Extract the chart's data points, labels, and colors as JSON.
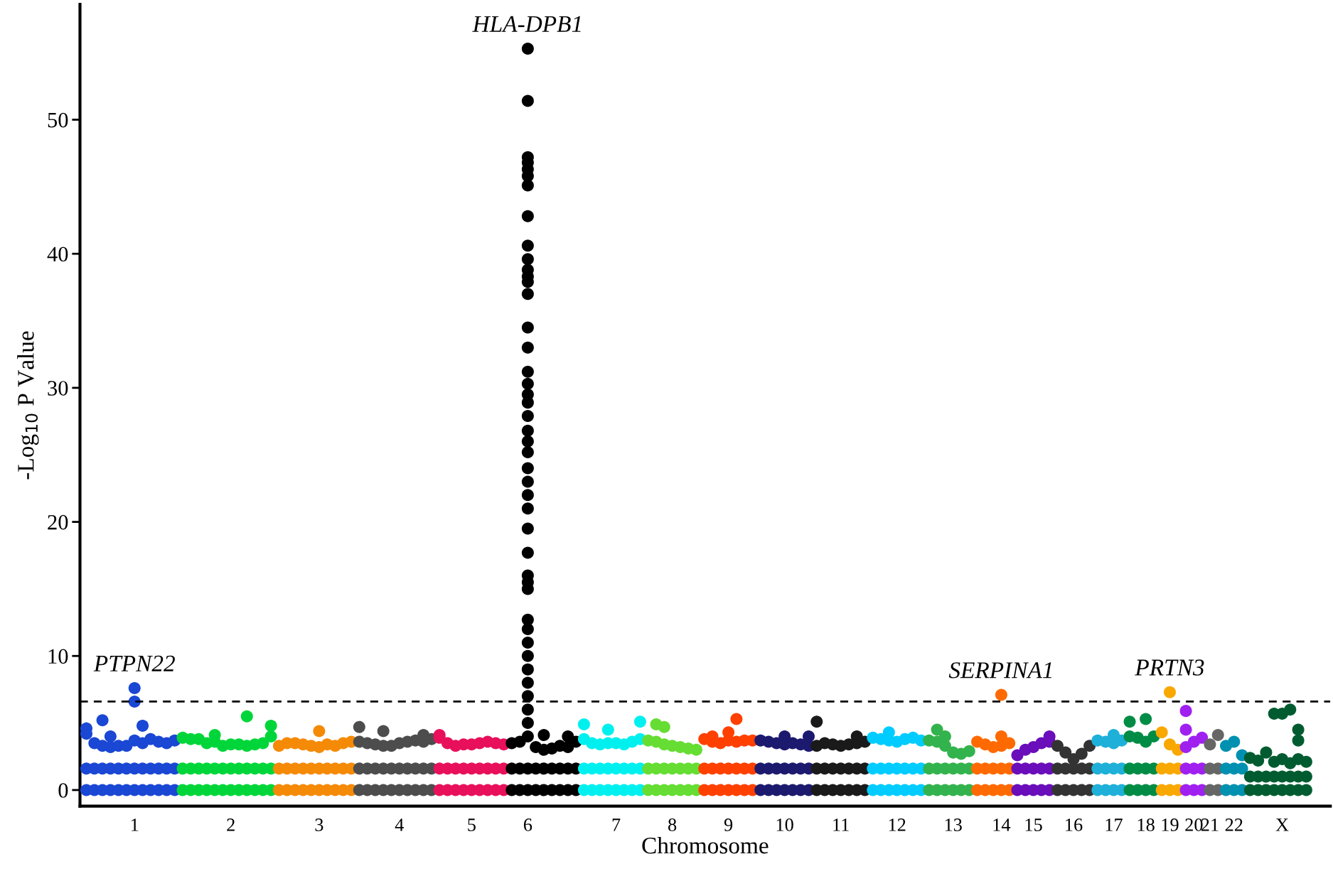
{
  "chart_data": {
    "type": "scatter",
    "xlabel": "Chromosome",
    "ylabel": "-Log$_{10}$ P Value",
    "ylim": [
      -1.2,
      58.6
    ],
    "yticks": [
      0,
      10,
      20,
      30,
      40,
      50
    ],
    "grid": false,
    "marker": "circle",
    "categories": [
      null,
      null,
      null,
      null,
      null,
      null,
      "1",
      null,
      null,
      null,
      null,
      null,
      null,
      null,
      null,
      null,
      null,
      null,
      "2",
      null,
      null,
      null,
      null,
      null,
      null,
      null,
      null,
      null,
      null,
      "3",
      null,
      null,
      null,
      null,
      null,
      null,
      null,
      null,
      null,
      "4",
      null,
      null,
      null,
      null,
      null,
      null,
      null,
      null,
      "5",
      null,
      null,
      null,
      null,
      null,
      null,
      "6",
      null,
      null,
      null,
      null,
      null,
      null,
      null,
      null,
      null,
      null,
      "7",
      null,
      null,
      null,
      null,
      null,
      null,
      "8",
      null,
      null,
      null,
      null,
      null,
      null,
      "9",
      null,
      null,
      null,
      null,
      null,
      null,
      "10",
      null,
      null,
      null,
      null,
      null,
      null,
      "11",
      null,
      null,
      null,
      null,
      null,
      null,
      "12",
      null,
      null,
      null,
      null,
      null,
      null,
      "13",
      null,
      null,
      null,
      null,
      null,
      "14",
      null,
      null,
      null,
      "15",
      null,
      null,
      null,
      null,
      "16",
      null,
      null,
      null,
      null,
      "17",
      null,
      null,
      null,
      "18",
      null,
      null,
      "19",
      null,
      null,
      "20",
      null,
      "21",
      null,
      null,
      "22",
      null,
      null,
      null,
      null,
      null,
      "X",
      null,
      null,
      null
    ],
    "ref_lines": [
      {
        "axis": "y",
        "value": 6.6,
        "color": "#000000",
        "line_style": "dashed"
      }
    ],
    "annotations": [
      {
        "text": "HLA-DPB1",
        "x": "6",
        "y": 55.3
      },
      {
        "text": "PTPN22",
        "x": "1",
        "y": 7.6
      },
      {
        "text": "SERPINA1",
        "x": "14",
        "y": 7.1
      },
      {
        "text": "PRTN3",
        "x": "19",
        "y": 7.3
      }
    ],
    "series": [
      {
        "colors": [
          "#1a47d4",
          "#1a47d4",
          "#1a47d4",
          "#1a47d4",
          "#1a47d4",
          "#1a47d4",
          "#1a47d4",
          "#1a47d4",
          "#1a47d4",
          "#1a47d4",
          "#1a47d4",
          "#1a47d4",
          "#00d63a",
          "#00d63a",
          "#00d63a",
          "#00d63a",
          "#00d63a",
          "#00d63a",
          "#00d63a",
          "#00d63a",
          "#00d63a",
          "#00d63a",
          "#00d63a",
          "#00d63a",
          "#f58a07",
          "#f58a07",
          "#f58a07",
          "#f58a07",
          "#f58a07",
          "#f58a07",
          "#f58a07",
          "#f58a07",
          "#f58a07",
          "#f58a07",
          "#4d4d4d",
          "#4d4d4d",
          "#4d4d4d",
          "#4d4d4d",
          "#4d4d4d",
          "#4d4d4d",
          "#4d4d4d",
          "#4d4d4d",
          "#4d4d4d",
          "#4d4d4d",
          "#e8105a",
          "#e8105a",
          "#e8105a",
          "#e8105a",
          "#e8105a",
          "#e8105a",
          "#e8105a",
          "#e8105a",
          "#e8105a",
          "#000000",
          "#000000",
          "#000000",
          "#000000",
          "#000000",
          "#000000",
          "#000000",
          "#000000",
          "#000000",
          "#00f0f0",
          "#00f0f0",
          "#00f0f0",
          "#00f0f0",
          "#00f0f0",
          "#00f0f0",
          "#00f0f0",
          "#00f0f0",
          "#66dd33",
          "#66dd33",
          "#66dd33",
          "#66dd33",
          "#66dd33",
          "#66dd33",
          "#66dd33",
          "#ff4000",
          "#ff4000",
          "#ff4000",
          "#ff4000",
          "#ff4000",
          "#ff4000",
          "#ff4000",
          "#1c1a6e",
          "#1c1a6e",
          "#1c1a6e",
          "#1c1a6e",
          "#1c1a6e",
          "#1c1a6e",
          "#1c1a6e",
          "#1a1a1a",
          "#1a1a1a",
          "#1a1a1a",
          "#1a1a1a",
          "#1a1a1a",
          "#1a1a1a",
          "#1a1a1a",
          "#00ccff",
          "#00ccff",
          "#00ccff",
          "#00ccff",
          "#00ccff",
          "#00ccff",
          "#00ccff",
          "#33b34d",
          "#33b34d",
          "#33b34d",
          "#33b34d",
          "#33b34d",
          "#33b34d",
          "#ff6a00",
          "#ff6a00",
          "#ff6a00",
          "#ff6a00",
          "#ff6a00",
          "#6a0dba",
          "#6a0dba",
          "#6a0dba",
          "#6a0dba",
          "#6a0dba",
          "#333333",
          "#333333",
          "#333333",
          "#333333",
          "#333333",
          "#1eb0d8",
          "#1eb0d8",
          "#1eb0d8",
          "#1eb0d8",
          "#008c45",
          "#008c45",
          "#008c45",
          "#008c45",
          "#f9a800",
          "#f9a800",
          "#f9a800",
          "#a020f0",
          "#a020f0",
          "#a020f0",
          "#666666",
          "#666666",
          "#0090b0",
          "#0090b0",
          "#0090b0",
          "#005c30",
          "#005c30",
          "#005c30",
          "#005c30",
          "#005c30",
          "#005c30",
          "#005c30",
          "#005c30"
        ],
        "values": [
          0,
          0,
          0,
          0,
          0,
          0,
          0,
          0,
          0,
          0,
          0,
          0,
          0,
          0,
          0,
          0,
          0,
          0,
          0,
          0,
          0,
          0,
          0,
          0,
          0,
          0,
          0,
          0,
          0,
          0,
          0,
          0,
          0,
          0,
          0,
          0,
          0,
          0,
          0,
          0,
          0,
          0,
          0,
          0,
          0,
          0,
          0,
          0,
          0,
          0,
          0,
          0,
          0,
          0,
          0,
          0,
          0,
          0,
          0,
          0,
          0,
          0,
          0,
          0,
          0,
          0,
          0,
          0,
          0,
          0,
          0,
          0,
          0,
          0,
          0,
          0,
          0,
          0,
          0,
          0,
          0,
          0,
          0,
          0,
          0,
          0,
          0,
          0,
          0,
          0,
          0,
          0,
          0,
          0,
          0,
          0,
          0,
          0,
          0,
          0,
          0,
          0,
          0,
          0,
          0,
          0,
          0,
          0,
          0,
          0,
          0,
          0,
          0,
          0,
          0,
          0,
          0,
          0,
          0,
          0,
          0,
          0,
          0,
          0,
          0,
          0,
          0,
          0,
          0,
          0,
          0,
          0,
          0,
          0,
          0,
          0,
          0,
          0,
          0,
          0,
          0,
          0,
          0,
          0,
          0,
          0,
          0,
          0,
          0,
          0,
          0,
          0,
          0
        ]
      },
      {
        "colors": [
          "#1a47d4",
          "#1a47d4",
          "#1a47d4",
          "#1a47d4",
          "#1a47d4",
          "#1a47d4",
          "#1a47d4",
          "#1a47d4",
          "#1a47d4",
          "#1a47d4",
          "#1a47d4",
          "#1a47d4",
          "#00d63a",
          "#00d63a",
          "#00d63a",
          "#00d63a",
          "#00d63a",
          "#00d63a",
          "#00d63a",
          "#00d63a",
          "#00d63a",
          "#00d63a",
          "#00d63a",
          "#00d63a",
          "#f58a07",
          "#f58a07",
          "#f58a07",
          "#f58a07",
          "#f58a07",
          "#f58a07",
          "#f58a07",
          "#f58a07",
          "#f58a07",
          "#f58a07",
          "#4d4d4d",
          "#4d4d4d",
          "#4d4d4d",
          "#4d4d4d",
          "#4d4d4d",
          "#4d4d4d",
          "#4d4d4d",
          "#4d4d4d",
          "#4d4d4d",
          "#4d4d4d",
          "#e8105a",
          "#e8105a",
          "#e8105a",
          "#e8105a",
          "#e8105a",
          "#e8105a",
          "#e8105a",
          "#e8105a",
          "#e8105a",
          "#000000",
          "#000000",
          "#000000",
          "#000000",
          "#000000",
          "#000000",
          "#000000",
          "#000000",
          "#000000",
          "#00f0f0",
          "#00f0f0",
          "#00f0f0",
          "#00f0f0",
          "#00f0f0",
          "#00f0f0",
          "#00f0f0",
          "#00f0f0",
          "#66dd33",
          "#66dd33",
          "#66dd33",
          "#66dd33",
          "#66dd33",
          "#66dd33",
          "#66dd33",
          "#ff4000",
          "#ff4000",
          "#ff4000",
          "#ff4000",
          "#ff4000",
          "#ff4000",
          "#ff4000",
          "#1c1a6e",
          "#1c1a6e",
          "#1c1a6e",
          "#1c1a6e",
          "#1c1a6e",
          "#1c1a6e",
          "#1c1a6e",
          "#1a1a1a",
          "#1a1a1a",
          "#1a1a1a",
          "#1a1a1a",
          "#1a1a1a",
          "#1a1a1a",
          "#1a1a1a",
          "#00ccff",
          "#00ccff",
          "#00ccff",
          "#00ccff",
          "#00ccff",
          "#00ccff",
          "#00ccff",
          "#33b34d",
          "#33b34d",
          "#33b34d",
          "#33b34d",
          "#33b34d",
          "#33b34d",
          "#ff6a00",
          "#ff6a00",
          "#ff6a00",
          "#ff6a00",
          "#ff6a00",
          "#6a0dba",
          "#6a0dba",
          "#6a0dba",
          "#6a0dba",
          "#6a0dba",
          "#333333",
          "#333333",
          "#333333",
          "#333333",
          "#333333",
          "#1eb0d8",
          "#1eb0d8",
          "#1eb0d8",
          "#1eb0d8",
          "#008c45",
          "#008c45",
          "#008c45",
          "#008c45",
          "#f9a800",
          "#f9a800",
          "#f9a800",
          "#a020f0",
          "#a020f0",
          "#a020f0",
          "#666666",
          "#666666",
          "#0090b0",
          "#0090b0",
          "#0090b0",
          "#005c30",
          "#005c30",
          "#005c30",
          "#005c30",
          "#005c30",
          "#005c30",
          "#005c30",
          "#005c30"
        ],
        "values": [
          1.6,
          1.6,
          1.6,
          1.6,
          1.6,
          1.6,
          1.6,
          1.6,
          1.6,
          1.6,
          1.6,
          1.6,
          1.6,
          1.6,
          1.6,
          1.6,
          1.6,
          1.6,
          1.6,
          1.6,
          1.6,
          1.6,
          1.6,
          1.6,
          1.6,
          1.6,
          1.6,
          1.6,
          1.6,
          1.6,
          1.6,
          1.6,
          1.6,
          1.6,
          1.6,
          1.6,
          1.6,
          1.6,
          1.6,
          1.6,
          1.6,
          1.6,
          1.6,
          1.6,
          1.6,
          1.6,
          1.6,
          1.6,
          1.6,
          1.6,
          1.6,
          1.6,
          1.6,
          1.6,
          1.6,
          1.6,
          1.6,
          1.6,
          1.6,
          1.6,
          1.6,
          1.6,
          1.6,
          1.6,
          1.6,
          1.6,
          1.6,
          1.6,
          1.6,
          1.6,
          1.6,
          1.6,
          1.6,
          1.6,
          1.6,
          1.6,
          1.6,
          1.6,
          1.6,
          1.6,
          1.6,
          1.6,
          1.6,
          1.6,
          1.6,
          1.6,
          1.6,
          1.6,
          1.6,
          1.6,
          1.6,
          1.6,
          1.6,
          1.6,
          1.6,
          1.6,
          1.6,
          1.6,
          1.6,
          1.6,
          1.6,
          1.6,
          1.6,
          1.6,
          1.6,
          1.6,
          1.6,
          1.6,
          1.6,
          1.6,
          1.6,
          1.6,
          1.6,
          1.6,
          1.6,
          1.6,
          1.6,
          1.6,
          1.6,
          1.6,
          1.6,
          1.6,
          1.6,
          1.6,
          1.6,
          1.6,
          1.6,
          1.6,
          1.6,
          1.6,
          1.6,
          1.6,
          1.6,
          1.6,
          1.6,
          1.6,
          1.6,
          1.6,
          1.6,
          1.6,
          1.6,
          1.6,
          1.6,
          1.6,
          1.6,
          1.0,
          1.0,
          1.0,
          1.0,
          1.0,
          1.0,
          1.0,
          1.0
        ]
      },
      {
        "colors": [
          "#1a47d4",
          "#1a47d4",
          "#1a47d4",
          "#1a47d4",
          "#1a47d4",
          "#1a47d4",
          "#1a47d4",
          "#1a47d4",
          "#1a47d4",
          "#1a47d4",
          "#1a47d4",
          "#1a47d4",
          "#00d63a",
          "#00d63a",
          "#00d63a",
          "#00d63a",
          "#00d63a",
          "#00d63a",
          "#00d63a",
          "#00d63a",
          "#00d63a",
          "#00d63a",
          "#00d63a",
          "#00d63a",
          "#f58a07",
          "#f58a07",
          "#f58a07",
          "#f58a07",
          "#f58a07",
          "#f58a07",
          "#f58a07",
          "#f58a07",
          "#f58a07",
          "#f58a07",
          "#4d4d4d",
          "#4d4d4d",
          "#4d4d4d",
          "#4d4d4d",
          "#4d4d4d",
          "#4d4d4d",
          "#4d4d4d",
          "#4d4d4d",
          "#4d4d4d",
          "#4d4d4d",
          "#e8105a",
          "#e8105a",
          "#e8105a",
          "#e8105a",
          "#e8105a",
          "#e8105a",
          "#e8105a",
          "#e8105a",
          "#e8105a",
          "#000000",
          "#000000",
          "#000000",
          "#000000",
          "#000000",
          "#000000",
          "#000000",
          "#000000",
          "#000000",
          "#00f0f0",
          "#00f0f0",
          "#00f0f0",
          "#00f0f0",
          "#00f0f0",
          "#00f0f0",
          "#00f0f0",
          "#00f0f0",
          "#66dd33",
          "#66dd33",
          "#66dd33",
          "#66dd33",
          "#66dd33",
          "#66dd33",
          "#66dd33",
          "#ff4000",
          "#ff4000",
          "#ff4000",
          "#ff4000",
          "#ff4000",
          "#ff4000",
          "#ff4000",
          "#1c1a6e",
          "#1c1a6e",
          "#1c1a6e",
          "#1c1a6e",
          "#1c1a6e",
          "#1c1a6e",
          "#1c1a6e",
          "#1a1a1a",
          "#1a1a1a",
          "#1a1a1a",
          "#1a1a1a",
          "#1a1a1a",
          "#1a1a1a",
          "#1a1a1a",
          "#00ccff",
          "#00ccff",
          "#00ccff",
          "#00ccff",
          "#00ccff",
          "#00ccff",
          "#00ccff",
          "#33b34d",
          "#33b34d",
          "#33b34d",
          "#33b34d",
          "#33b34d",
          "#33b34d",
          "#ff6a00",
          "#ff6a00",
          "#ff6a00",
          "#ff6a00",
          "#ff6a00",
          "#6a0dba",
          "#6a0dba",
          "#6a0dba",
          "#6a0dba",
          "#6a0dba",
          "#333333",
          "#333333",
          "#333333",
          "#333333",
          "#333333",
          "#1eb0d8",
          "#1eb0d8",
          "#1eb0d8",
          "#1eb0d8",
          "#008c45",
          "#008c45",
          "#008c45",
          "#008c45",
          "#f9a800",
          "#f9a800",
          "#f9a800",
          "#a020f0",
          "#a020f0",
          "#a020f0",
          "#666666",
          "#666666",
          "#0090b0",
          "#0090b0",
          "#0090b0",
          "#005c30",
          "#005c30",
          "#005c30",
          "#005c30",
          "#005c30",
          "#005c30",
          "#005c30",
          "#005c30"
        ],
        "values": [
          4.2,
          3.5,
          3.3,
          3.2,
          3.3,
          3.3,
          3.7,
          3.5,
          3.8,
          3.6,
          3.5,
          3.7,
          3.9,
          3.8,
          3.8,
          3.5,
          3.6,
          3.3,
          3.4,
          3.4,
          3.3,
          3.4,
          3.5,
          4.0,
          3.3,
          3.5,
          3.5,
          3.4,
          3.3,
          3.2,
          3.4,
          3.3,
          3.5,
          3.6,
          3.6,
          3.5,
          3.4,
          3.3,
          3.3,
          3.5,
          3.6,
          3.7,
          3.6,
          3.8,
          3.9,
          3.5,
          3.3,
          3.4,
          3.4,
          3.5,
          3.6,
          3.5,
          3.4,
          3.5,
          3.6,
          4.0,
          3.2,
          3.0,
          3.1,
          3.3,
          3.2,
          3.6,
          3.8,
          3.5,
          3.4,
          3.5,
          3.5,
          3.4,
          3.6,
          3.8,
          3.7,
          3.6,
          3.4,
          3.3,
          3.2,
          3.1,
          3.0,
          3.8,
          3.6,
          3.5,
          3.7,
          3.6,
          3.7,
          3.7,
          3.7,
          3.6,
          3.5,
          3.4,
          3.5,
          3.4,
          3.3,
          3.3,
          3.5,
          3.4,
          3.3,
          3.4,
          3.5,
          3.6,
          3.9,
          3.8,
          3.7,
          3.6,
          3.8,
          3.9,
          3.7,
          3.7,
          3.6,
          3.3,
          2.8,
          2.7,
          2.9,
          3.6,
          3.4,
          3.2,
          3.3,
          3.5,
          2.6,
          3.0,
          3.2,
          3.5,
          3.6,
          3.3,
          2.8,
          2.3,
          2.7,
          3.3,
          3.7,
          3.6,
          3.5,
          3.7,
          4.0,
          3.9,
          3.6,
          4.0,
          4.3,
          3.4,
          3.0,
          3.2,
          3.6,
          3.9,
          3.4,
          4.1,
          3.3,
          3.6,
          2.6,
          2.4,
          2.2,
          2.8,
          2.1,
          2.3,
          2.0,
          2.3,
          2.1
        ]
      },
      {
        "colors": [
          "#1a47d4",
          "#1a47d4",
          "#1a47d4",
          "#1a47d4",
          "#1a47d4",
          "#1a47d4",
          "#1a47d4",
          "#1a47d4",
          "#1a47d4",
          "#1a47d4",
          "#1a47d4",
          "#1a47d4",
          "#00d63a",
          "#00d63a",
          "#00d63a",
          "#00d63a",
          "#00d63a",
          "#00d63a",
          "#00d63a",
          "#00d63a",
          "#00d63a",
          "#00d63a",
          "#00d63a",
          "#00d63a",
          "#f58a07",
          "#f58a07",
          "#f58a07",
          "#f58a07",
          "#f58a07",
          "#f58a07",
          "#f58a07",
          "#f58a07",
          "#f58a07",
          "#f58a07",
          "#4d4d4d",
          "#4d4d4d",
          "#4d4d4d",
          "#4d4d4d",
          "#4d4d4d",
          "#4d4d4d",
          "#4d4d4d",
          "#4d4d4d",
          "#4d4d4d",
          "#4d4d4d",
          "#e8105a",
          "#e8105a",
          "#e8105a",
          "#e8105a",
          "#e8105a",
          "#e8105a",
          "#e8105a",
          "#e8105a",
          "#e8105a",
          "#000000",
          "#000000",
          "#000000",
          "#000000",
          "#000000",
          "#000000",
          "#000000",
          "#000000",
          "#000000",
          "#00f0f0",
          "#00f0f0",
          "#00f0f0",
          "#00f0f0",
          "#00f0f0",
          "#00f0f0",
          "#00f0f0",
          "#00f0f0",
          "#66dd33",
          "#66dd33",
          "#66dd33",
          "#66dd33",
          "#66dd33",
          "#66dd33",
          "#66dd33",
          "#ff4000",
          "#ff4000",
          "#ff4000",
          "#ff4000",
          "#ff4000",
          "#ff4000",
          "#ff4000",
          "#1c1a6e",
          "#1c1a6e",
          "#1c1a6e",
          "#1c1a6e",
          "#1c1a6e",
          "#1c1a6e",
          "#1c1a6e",
          "#1a1a1a",
          "#1a1a1a",
          "#1a1a1a",
          "#1a1a1a",
          "#1a1a1a",
          "#1a1a1a",
          "#1a1a1a",
          "#00ccff",
          "#00ccff",
          "#00ccff",
          "#00ccff",
          "#00ccff",
          "#00ccff",
          "#00ccff",
          "#33b34d",
          "#33b34d",
          "#33b34d",
          "#33b34d",
          "#33b34d",
          "#33b34d",
          "#ff6a00",
          "#ff6a00",
          "#ff6a00",
          "#ff6a00",
          "#ff6a00",
          "#6a0dba",
          "#6a0dba",
          "#6a0dba",
          "#6a0dba",
          "#6a0dba",
          "#333333",
          "#333333",
          "#333333",
          "#333333",
          "#333333",
          "#1eb0d8",
          "#1eb0d8",
          "#1eb0d8",
          "#1eb0d8",
          "#008c45",
          "#008c45",
          "#008c45",
          "#008c45",
          "#f9a800",
          "#f9a800",
          "#f9a800",
          "#a020f0",
          "#a020f0",
          "#a020f0",
          "#666666",
          "#666666",
          "#0090b0",
          "#0090b0",
          "#0090b0",
          "#005c30",
          "#005c30",
          "#005c30",
          "#005c30",
          "#005c30",
          "#005c30",
          "#005c30",
          "#005c30"
        ],
        "values": [
          4.6,
          null,
          5.2,
          4.0,
          null,
          null,
          7.6,
          4.8,
          null,
          null,
          null,
          null,
          null,
          null,
          null,
          null,
          4.1,
          null,
          null,
          null,
          5.5,
          null,
          null,
          4.8,
          null,
          null,
          null,
          null,
          null,
          4.4,
          null,
          null,
          null,
          null,
          4.7,
          null,
          null,
          4.4,
          null,
          null,
          null,
          null,
          4.1,
          null,
          4.1,
          null,
          null,
          null,
          null,
          null,
          null,
          null,
          null,
          null,
          null,
          null,
          null,
          4.1,
          null,
          null,
          4.0,
          null,
          4.9,
          null,
          null,
          4.5,
          null,
          null,
          null,
          5.1,
          null,
          4.9,
          4.7,
          null,
          null,
          null,
          null,
          null,
          4.0,
          null,
          4.3,
          5.3,
          null,
          null,
          null,
          null,
          null,
          4.0,
          null,
          null,
          4.0,
          5.1,
          null,
          null,
          null,
          null,
          4.0,
          null,
          null,
          null,
          4.3,
          null,
          null,
          null,
          null,
          null,
          4.5,
          4.0,
          null,
          null,
          null,
          null,
          null,
          null,
          7.1,
          null,
          null,
          null,
          null,
          null,
          4.0,
          null,
          null,
          null,
          null,
          null,
          null,
          null,
          4.1,
          null,
          5.1,
          null,
          5.3,
          null,
          null,
          7.3,
          null,
          5.9,
          null,
          null,
          null,
          null,
          null,
          null,
          null,
          null,
          null,
          null,
          5.7,
          5.7,
          6.0,
          4.5,
          null
        ]
      },
      {
        "colors": [
          "#1a47d4",
          "#1a47d4",
          "#1a47d4",
          "#1a47d4",
          "#1a47d4",
          "#1a47d4",
          "#1a47d4",
          "#1a47d4",
          "#1a47d4",
          "#1a47d4",
          "#1a47d4",
          "#1a47d4",
          "#00d63a",
          "#00d63a",
          "#00d63a",
          "#00d63a",
          "#00d63a",
          "#00d63a",
          "#00d63a",
          "#00d63a",
          "#00d63a",
          "#00d63a",
          "#00d63a",
          "#00d63a",
          "#f58a07",
          "#f58a07",
          "#f58a07",
          "#f58a07",
          "#f58a07",
          "#f58a07",
          "#f58a07",
          "#f58a07",
          "#f58a07",
          "#f58a07",
          "#4d4d4d",
          "#4d4d4d",
          "#4d4d4d",
          "#4d4d4d",
          "#4d4d4d",
          "#4d4d4d",
          "#4d4d4d",
          "#4d4d4d",
          "#4d4d4d",
          "#4d4d4d",
          "#e8105a",
          "#e8105a",
          "#e8105a",
          "#e8105a",
          "#e8105a",
          "#e8105a",
          "#e8105a",
          "#e8105a",
          "#e8105a",
          "#000000",
          "#000000",
          "#000000",
          "#000000",
          "#000000",
          "#000000",
          "#000000",
          "#000000",
          "#000000",
          "#00f0f0",
          "#00f0f0",
          "#00f0f0",
          "#00f0f0",
          "#00f0f0",
          "#00f0f0",
          "#00f0f0",
          "#00f0f0",
          "#66dd33",
          "#66dd33",
          "#66dd33",
          "#66dd33",
          "#66dd33",
          "#66dd33",
          "#66dd33",
          "#ff4000",
          "#ff4000",
          "#ff4000",
          "#ff4000",
          "#ff4000",
          "#ff4000",
          "#ff4000",
          "#1c1a6e",
          "#1c1a6e",
          "#1c1a6e",
          "#1c1a6e",
          "#1c1a6e",
          "#1c1a6e",
          "#1c1a6e",
          "#1a1a1a",
          "#1a1a1a",
          "#1a1a1a",
          "#1a1a1a",
          "#1a1a1a",
          "#1a1a1a",
          "#1a1a1a",
          "#00ccff",
          "#00ccff",
          "#00ccff",
          "#00ccff",
          "#00ccff",
          "#00ccff",
          "#00ccff",
          "#33b34d",
          "#33b34d",
          "#33b34d",
          "#33b34d",
          "#33b34d",
          "#33b34d",
          "#ff6a00",
          "#ff6a00",
          "#ff6a00",
          "#ff6a00",
          "#ff6a00",
          "#6a0dba",
          "#6a0dba",
          "#6a0dba",
          "#6a0dba",
          "#6a0dba",
          "#333333",
          "#333333",
          "#333333",
          "#333333",
          "#333333",
          "#1eb0d8",
          "#1eb0d8",
          "#1eb0d8",
          "#1eb0d8",
          "#008c45",
          "#008c45",
          "#008c45",
          "#008c45",
          "#f9a800",
          "#f9a800",
          "#f9a800",
          "#a020f0",
          "#a020f0",
          "#a020f0",
          "#666666",
          "#666666",
          "#0090b0",
          "#0090b0",
          "#0090b0",
          "#005c30",
          "#005c30",
          "#005c30",
          "#005c30",
          "#005c30",
          "#005c30",
          "#005c30",
          "#005c30"
        ],
        "values": [
          null,
          null,
          null,
          null,
          null,
          null,
          6.6,
          null,
          null,
          null,
          null,
          null,
          null,
          null,
          null,
          null,
          null,
          null,
          null,
          null,
          null,
          null,
          null,
          null,
          null,
          null,
          null,
          null,
          null,
          null,
          null,
          null,
          null,
          null,
          null,
          null,
          null,
          null,
          null,
          null,
          null,
          null,
          null,
          null,
          null,
          null,
          null,
          null,
          null,
          null,
          null,
          null,
          null,
          null,
          null,
          null,
          null,
          null,
          null,
          null,
          null,
          null,
          null,
          null,
          null,
          null,
          null,
          null,
          null,
          null,
          null,
          null,
          null,
          null,
          null,
          null,
          null,
          null,
          null,
          null,
          null,
          null,
          null,
          null,
          null,
          null,
          null,
          null,
          null,
          null,
          null,
          null,
          null,
          null,
          null,
          null,
          null,
          null,
          null,
          null,
          null,
          null,
          null,
          null,
          null,
          null,
          null,
          null,
          null,
          null,
          null,
          null,
          null,
          null,
          4.0,
          null,
          null,
          null,
          null,
          null,
          null,
          null,
          null,
          null,
          null,
          null,
          null,
          null,
          null,
          null,
          null,
          null,
          null,
          null,
          null,
          null,
          null,
          4.5,
          null,
          null,
          null,
          null,
          null,
          null,
          null,
          null,
          null,
          null,
          null,
          null,
          null,
          3.7,
          null
        ]
      },
      {
        "color": "#000000",
        "x": [
          "6",
          "6",
          "6",
          "6",
          "6",
          "6",
          "6",
          "6",
          "6",
          "6",
          "6",
          "6",
          "6",
          "6",
          "6",
          "6",
          "6",
          "6",
          "6",
          "6",
          "6",
          "6",
          "6",
          "6",
          "6",
          "6",
          "6",
          "6",
          "6",
          "6",
          "6",
          "6",
          "6",
          "6",
          "6",
          "6",
          "6",
          "6",
          "6",
          "6",
          "6",
          "6"
        ],
        "values": [
          55.3,
          51.4,
          47.2,
          46.8,
          46.3,
          45.8,
          45.1,
          42.8,
          40.6,
          39.6,
          38.8,
          38.3,
          37.9,
          37.0,
          34.5,
          33.0,
          31.2,
          30.3,
          29.5,
          28.9,
          27.9,
          26.8,
          26.0,
          25.2,
          24.0,
          23.0,
          22.0,
          21.0,
          19.5,
          17.7,
          16.0,
          15.5,
          15.0,
          12.7,
          12.0,
          11.0,
          10.0,
          9.0,
          8.0,
          7.0,
          6.0,
          5.0
        ]
      }
    ]
  }
}
